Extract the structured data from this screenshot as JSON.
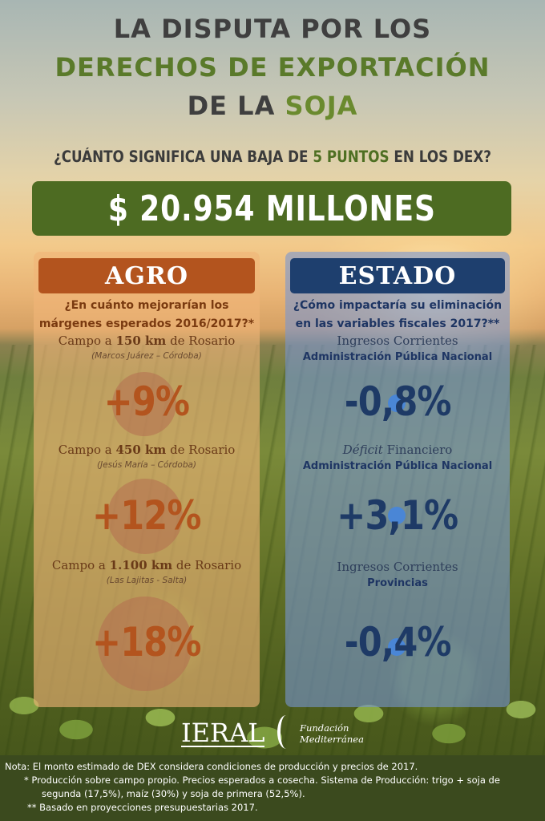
{
  "title": {
    "line1": "LA DISPUTA POR LOS",
    "line2": "DERECHOS DE EXPORTACIÓN",
    "line3_a": "DE LA ",
    "line3_b": "SOJA"
  },
  "question": {
    "a": "¿CUÁNTO SIGNIFICA UNA BAJA DE ",
    "b": "5 PUNTOS",
    "c": " EN LOS DEX?"
  },
  "amount": "$ 20.954 MILLONES",
  "agro": {
    "header": "AGRO",
    "question_line1": "¿En cuánto mejorarían los",
    "question_line2": "márgenes esperados 2016/2017?*",
    "items": [
      {
        "label_a": "Campo a ",
        "label_b": "150 km",
        "label_c": " de Rosario",
        "sub": "(Marcos Juárez – Córdoba)",
        "value": "+9%"
      },
      {
        "label_a": "Campo a ",
        "label_b": "450 km",
        "label_c": " de Rosario",
        "sub": "(Jesús María – Córdoba)",
        "value": "+12%"
      },
      {
        "label_a": "Campo a ",
        "label_b": "1.100 km",
        "label_c": " de Rosario",
        "sub": "(Las Lajitas - Salta)",
        "value": "+18%"
      }
    ]
  },
  "estado": {
    "header": "ESTADO",
    "question_line1": "¿Cómo impactaría su eliminación",
    "question_line2": "en las variables fiscales 2017?**",
    "items": [
      {
        "label_a": "Ingresos Corrientes",
        "label_b": "",
        "sub": "Administración Pública Nacional",
        "value": "-0,8%"
      },
      {
        "label_a": "Déficit",
        "label_b": " Financiero",
        "sub": "Administración Pública Nacional",
        "value": "+3,1%"
      },
      {
        "label_a": "Ingresos Corrientes",
        "label_b": "",
        "sub": "Provincias",
        "value": "-0,4%"
      }
    ]
  },
  "logos": {
    "ieral": "IERAL",
    "fundacion_line1": "Fundación",
    "fundacion_line2": "Mediterránea"
  },
  "notes": {
    "line1": "Nota:  El monto estimado de DEX considera condiciones de producción y precios de 2017.",
    "line2": "*    Producción sobre campo propio. Precios esperados a cosecha. Sistema de Producción: trigo + soja de",
    "line3": "segunda (17,5%), maíz (30%) y soja de primera (52,5%).",
    "line4": "** Basado en proyecciones presupuestarias 2017."
  },
  "colors": {
    "agro_header": "#b3541e",
    "estado_header": "#1e3f6e",
    "amount_bar": "#4d6b22",
    "title_green": "#5a7a2a"
  }
}
